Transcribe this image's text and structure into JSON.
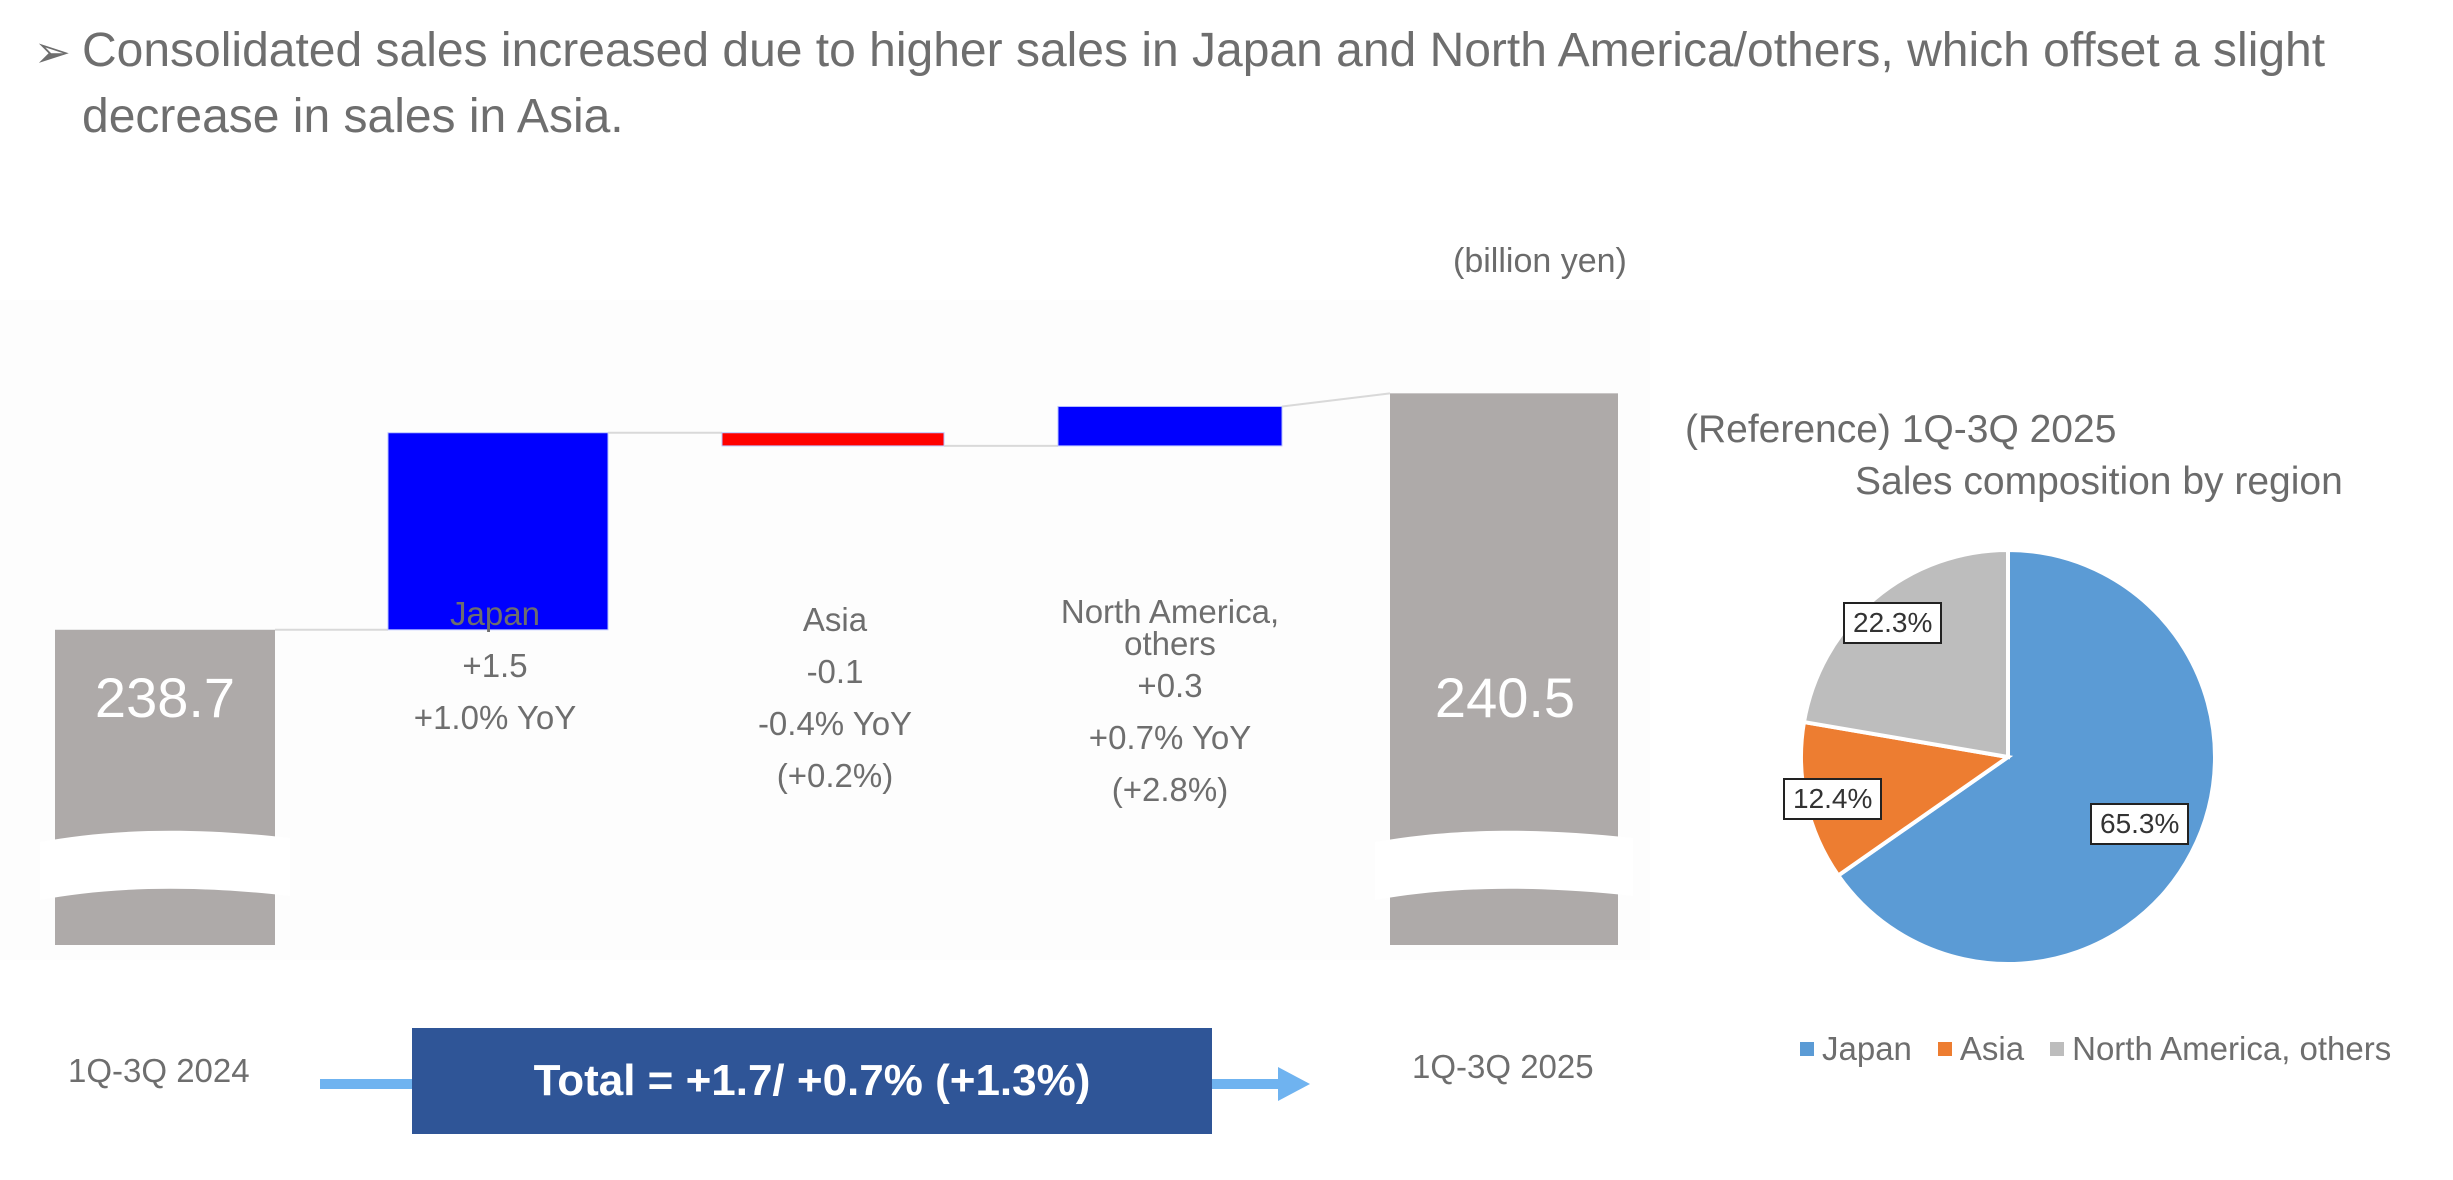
{
  "headline": {
    "bullet": "➢",
    "text": "Consolidated sales increased due to higher sales in Japan and North America/others, which offset a slight decrease in sales in Asia."
  },
  "unit_label": "(billion yen)",
  "colors": {
    "total_bar": "#aeaaa9",
    "increase": "#0000ff",
    "decrease": "#ff0000",
    "total_box": "#2f5597",
    "arrow": "#6fb3f0",
    "pie_japan": "#5b9bd5",
    "pie_asia": "#ed7d31",
    "pie_na": "#bdbdbd"
  },
  "chart_data": [
    {
      "type": "waterfall",
      "title": "",
      "ylabel": "(billion yen)",
      "axis_break": true,
      "categories": [
        "1Q-3Q 2024",
        "Japan",
        "Asia",
        "North America, others",
        "1Q-3Q 2025"
      ],
      "start_value": 238.7,
      "end_value": 240.5,
      "deltas": [
        {
          "name": "Japan",
          "value": 1.5,
          "change_label": "+1.5",
          "yoy_label": "+1.0% YoY",
          "extra_label": ""
        },
        {
          "name": "Asia",
          "value": -0.1,
          "change_label": "-0.1",
          "yoy_label": "-0.4% YoY",
          "extra_label": "(+0.2%)"
        },
        {
          "name": "North America,\nothers",
          "value": 0.3,
          "change_label": "+0.3",
          "yoy_label": "+0.7% YoY",
          "extra_label": "(+2.8%)"
        }
      ],
      "start_label": "238.7",
      "end_label": "240.5",
      "start_period": "1Q-3Q 2024",
      "end_period": "1Q-3Q 2025",
      "total_label": "Total = +1.7/ +0.7% (+1.3%)"
    },
    {
      "type": "pie",
      "title_line1": "(Reference) 1Q-3Q 2025",
      "title_line2": "Sales composition by region",
      "slices": [
        {
          "name": "Japan",
          "value": 65.3,
          "label": "65.3%"
        },
        {
          "name": "Asia",
          "value": 12.4,
          "label": "12.4%"
        },
        {
          "name": "North America, others",
          "value": 22.3,
          "label": "22.3%"
        }
      ],
      "legend": [
        "Japan",
        "Asia",
        "North America, others"
      ],
      "legend_position": "bottom"
    }
  ]
}
